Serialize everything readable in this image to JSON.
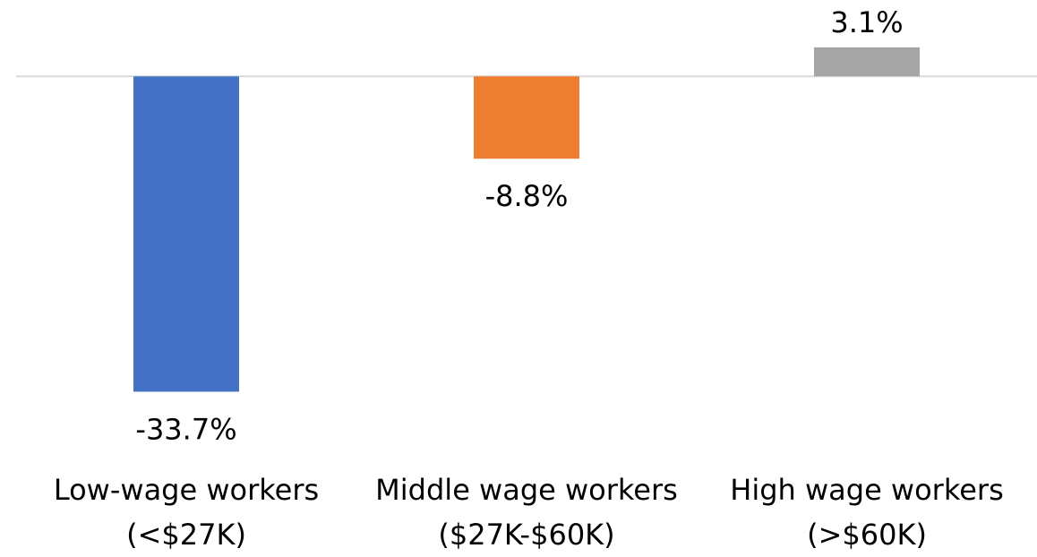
{
  "chart_data": {
    "type": "bar",
    "categories": [
      "Low-wage workers\n(<$27K)",
      "Middle wage workers\n($27K-$60K)",
      "High wage workers\n(>$60K)"
    ],
    "values": [
      -33.7,
      -8.8,
      3.1
    ],
    "value_labels": [
      "-33.7%",
      "-8.8%",
      "3.1%"
    ],
    "colors": [
      "#4472c4",
      "#ed7d31",
      "#a5a5a5"
    ],
    "ylim": [
      -35,
      5
    ]
  }
}
